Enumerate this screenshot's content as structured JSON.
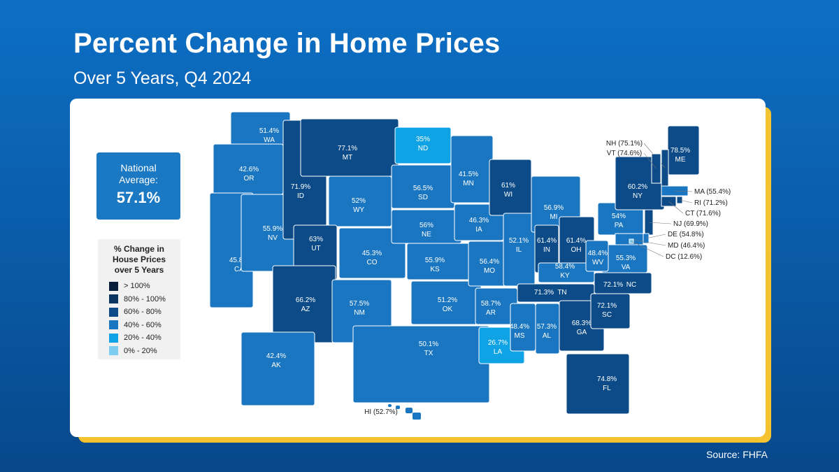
{
  "header": {
    "title": "Percent Change in Home Prices",
    "subtitle": "Over 5 Years, Q4 2024"
  },
  "national_average": {
    "label": "National Average:",
    "value": "57.1%"
  },
  "legend": {
    "title": "% Change in House Prices over 5 Years",
    "items": [
      {
        "label": "> 100%",
        "color": "#071f3b"
      },
      {
        "label": "80% - 100%",
        "color": "#0a3563"
      },
      {
        "label": "60% - 80%",
        "color": "#0c4b87"
      },
      {
        "label": "40% - 60%",
        "color": "#1a76c0"
      },
      {
        "label": "20% - 40%",
        "color": "#0fa3e6"
      },
      {
        "label": "0% - 20%",
        "color": "#7dcdf0"
      }
    ]
  },
  "states": [
    {
      "name": "WA",
      "value": "51.4%",
      "color": "#1a76c0"
    },
    {
      "name": "OR",
      "value": "42.6%",
      "color": "#1a76c0"
    },
    {
      "name": "CA",
      "value": "45.8%",
      "color": "#1a76c0"
    },
    {
      "name": "NV",
      "value": "55.9%",
      "color": "#1a76c0"
    },
    {
      "name": "ID",
      "value": "71.9%",
      "color": "#0c4b87"
    },
    {
      "name": "MT",
      "value": "77.1%",
      "color": "#0c4b87"
    },
    {
      "name": "WY",
      "value": "52%",
      "color": "#1a76c0"
    },
    {
      "name": "UT",
      "value": "63%",
      "color": "#0c4b87"
    },
    {
      "name": "AZ",
      "value": "66.2%",
      "color": "#0c4b87"
    },
    {
      "name": "CO",
      "value": "45.3%",
      "color": "#1a76c0"
    },
    {
      "name": "NM",
      "value": "57.5%",
      "color": "#1a76c0"
    },
    {
      "name": "ND",
      "value": "35%",
      "color": "#0fa3e6"
    },
    {
      "name": "SD",
      "value": "56.5%",
      "color": "#1a76c0"
    },
    {
      "name": "NE",
      "value": "56%",
      "color": "#1a76c0"
    },
    {
      "name": "KS",
      "value": "55.9%",
      "color": "#1a76c0"
    },
    {
      "name": "OK",
      "value": "51.2%",
      "color": "#1a76c0"
    },
    {
      "name": "TX",
      "value": "50.1%",
      "color": "#1a76c0"
    },
    {
      "name": "MN",
      "value": "41.5%",
      "color": "#1a76c0"
    },
    {
      "name": "IA",
      "value": "46.3%",
      "color": "#1a76c0"
    },
    {
      "name": "MO",
      "value": "56.4%",
      "color": "#1a76c0"
    },
    {
      "name": "AR",
      "value": "58.7%",
      "color": "#1a76c0"
    },
    {
      "name": "LA",
      "value": "26.7%",
      "color": "#0fa3e6"
    },
    {
      "name": "WI",
      "value": "61%",
      "color": "#0c4b87"
    },
    {
      "name": "IL",
      "value": "52.1%",
      "color": "#1a76c0"
    },
    {
      "name": "MI",
      "value": "56.9%",
      "color": "#1a76c0"
    },
    {
      "name": "IN",
      "value": "61.4%",
      "color": "#0c4b87"
    },
    {
      "name": "OH",
      "value": "61.4%",
      "color": "#0c4b87"
    },
    {
      "name": "KY",
      "value": "58.4%",
      "color": "#1a76c0"
    },
    {
      "name": "TN",
      "value": "71.3%",
      "color": "#0c4b87"
    },
    {
      "name": "MS",
      "value": "48.4%",
      "color": "#1a76c0"
    },
    {
      "name": "AL",
      "value": "57.3%",
      "color": "#1a76c0"
    },
    {
      "name": "GA",
      "value": "68.3%",
      "color": "#0c4b87"
    },
    {
      "name": "FL",
      "value": "74.8%",
      "color": "#0c4b87"
    },
    {
      "name": "SC",
      "value": "72.1%",
      "color": "#0c4b87"
    },
    {
      "name": "NC",
      "value": "72.1%",
      "color": "#0c4b87"
    },
    {
      "name": "VA",
      "value": "55.3%",
      "color": "#1a76c0"
    },
    {
      "name": "WV",
      "value": "48.4%",
      "color": "#1a76c0"
    },
    {
      "name": "PA",
      "value": "54%",
      "color": "#1a76c0"
    },
    {
      "name": "NY",
      "value": "60.2%",
      "color": "#0c4b87"
    },
    {
      "name": "ME",
      "value": "78.5%",
      "color": "#0c4b87"
    },
    {
      "name": "AK",
      "value": "42.4%",
      "color": "#1a76c0"
    }
  ],
  "small_states": [
    {
      "label": "NH (75.1%)",
      "color": "#0c4b87"
    },
    {
      "label": "VT (74.6%)",
      "color": "#0c4b87"
    },
    {
      "label": "MA (55.4%)",
      "color": "#1a76c0"
    },
    {
      "label": "RI (71.2%)",
      "color": "#0c4b87"
    },
    {
      "label": "CT (71.6%)",
      "color": "#0c4b87"
    },
    {
      "label": "NJ (69.9%)",
      "color": "#0c4b87"
    },
    {
      "label": "DE (54.8%)",
      "color": "#1a76c0"
    },
    {
      "label": "MD (46.4%)",
      "color": "#1a76c0"
    },
    {
      "label": "DC (12.6%)",
      "color": "#7dcdf0"
    },
    {
      "label": "HI (52.7%)",
      "color": "#1a76c0"
    }
  ],
  "source": "Source: FHFA"
}
